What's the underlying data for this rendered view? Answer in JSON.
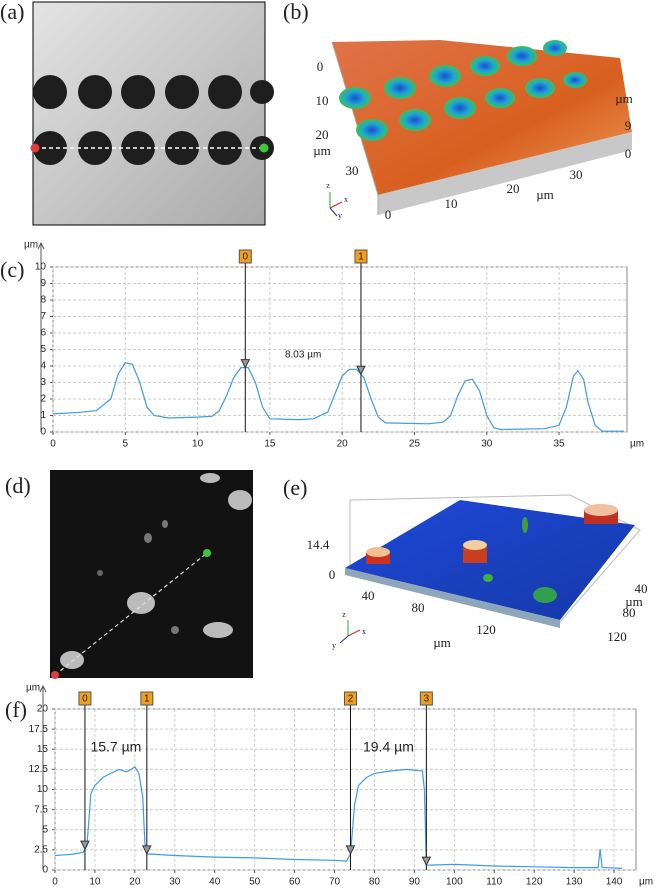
{
  "chart_data": [
    {
      "type": "line",
      "label": "(c)",
      "y_unit": "µm",
      "x_unit": "µm",
      "color": "#3d9be9",
      "grid": true,
      "x": [
        0,
        2,
        3,
        4,
        4.5,
        5,
        5.5,
        6,
        6.5,
        7,
        8,
        10,
        11,
        11.5,
        12,
        12.5,
        13,
        13.5,
        14,
        14.5,
        15,
        17,
        18,
        19,
        19.5,
        20,
        20.5,
        21,
        21.5,
        22,
        22.5,
        23,
        26,
        27,
        27.5,
        28,
        28.5,
        29,
        29.5,
        30,
        30.5,
        31,
        34,
        35,
        35.5,
        36,
        36.3,
        36.7,
        37,
        37.5,
        38,
        39.5
      ],
      "values": [
        1.1,
        1.2,
        1.3,
        2.0,
        3.5,
        4.2,
        4.1,
        3.0,
        1.5,
        1.0,
        0.85,
        0.9,
        0.95,
        1.3,
        2.2,
        3.3,
        3.9,
        3.9,
        3.0,
        1.5,
        0.8,
        0.75,
        0.8,
        1.2,
        2.3,
        3.4,
        3.8,
        3.8,
        3.3,
        2.0,
        0.9,
        0.55,
        0.5,
        0.6,
        1.0,
        2.2,
        3.1,
        3.2,
        2.5,
        1.0,
        0.25,
        0.15,
        0.2,
        0.4,
        1.5,
        3.4,
        3.7,
        3.2,
        1.8,
        0.4,
        0.05,
        0.05
      ],
      "xlim": [
        0,
        39.7
      ],
      "xticks": [
        0,
        5,
        10,
        15,
        20,
        25,
        30,
        35
      ],
      "ylim": [
        0,
        10
      ],
      "yticks": [
        0,
        1,
        2,
        3,
        4,
        5,
        6,
        7,
        8,
        9,
        10
      ],
      "cursors": [
        {
          "label": "0",
          "x": 13.3
        },
        {
          "label": "1",
          "x": 21.3
        }
      ],
      "annotations": [
        "8.03 µm"
      ]
    },
    {
      "type": "line",
      "label": "(f)",
      "y_unit": "µm",
      "x_unit": "µm",
      "color": "#3d9be9",
      "grid": true,
      "x": [
        0,
        3,
        5,
        7,
        8,
        9,
        10,
        12,
        14,
        16,
        18,
        20,
        21,
        22,
        22.5,
        23,
        30,
        40,
        50,
        60,
        70,
        73,
        74,
        75,
        76,
        78,
        80,
        84,
        88,
        92,
        92.5,
        93,
        100,
        110,
        120,
        130,
        136,
        136.5,
        137,
        142
      ],
      "values": [
        1.8,
        1.9,
        2.0,
        2.2,
        3.0,
        9.5,
        10.5,
        11.5,
        12,
        12.5,
        12.2,
        12.8,
        12,
        9,
        3.5,
        2.0,
        1.8,
        1.6,
        1.5,
        1.3,
        1.2,
        1.1,
        2,
        8,
        10.5,
        11.5,
        12,
        12.3,
        12.5,
        12.3,
        10,
        0.6,
        0.7,
        0.5,
        0.4,
        0.3,
        0.3,
        2.6,
        0.3,
        0.2
      ],
      "xlim": [
        0,
        145.5
      ],
      "xticks": [
        0,
        10,
        20,
        30,
        40,
        50,
        60,
        70,
        80,
        90,
        100,
        110,
        120,
        130,
        140
      ],
      "ylim": [
        0,
        20
      ],
      "yticks": [
        0,
        2.5,
        5,
        7.5,
        10,
        12.5,
        15,
        17.5,
        20
      ],
      "cursors": [
        {
          "label": "0",
          "x": 7.5
        },
        {
          "label": "1",
          "x": 23
        },
        {
          "label": "2",
          "x": 74
        },
        {
          "label": "3",
          "x": 93
        }
      ],
      "annotations": [
        "15.7 µm",
        "19.4 µm"
      ]
    }
  ],
  "panels": [
    {
      "label": "(a)"
    },
    {
      "label": "(b)",
      "texts": [
        "0",
        "10",
        "20",
        "30",
        "µm",
        "0",
        "10",
        "20",
        "30",
        "µm",
        "µm",
        "9",
        "0",
        "z",
        "x",
        "y"
      ]
    },
    {
      "label": "(d)"
    },
    {
      "label": "(e)",
      "texts": [
        "14.4",
        "0",
        "40",
        "80",
        "120",
        "µm",
        "40",
        "80",
        "120",
        "µm",
        "z",
        "x",
        "y"
      ]
    }
  ]
}
